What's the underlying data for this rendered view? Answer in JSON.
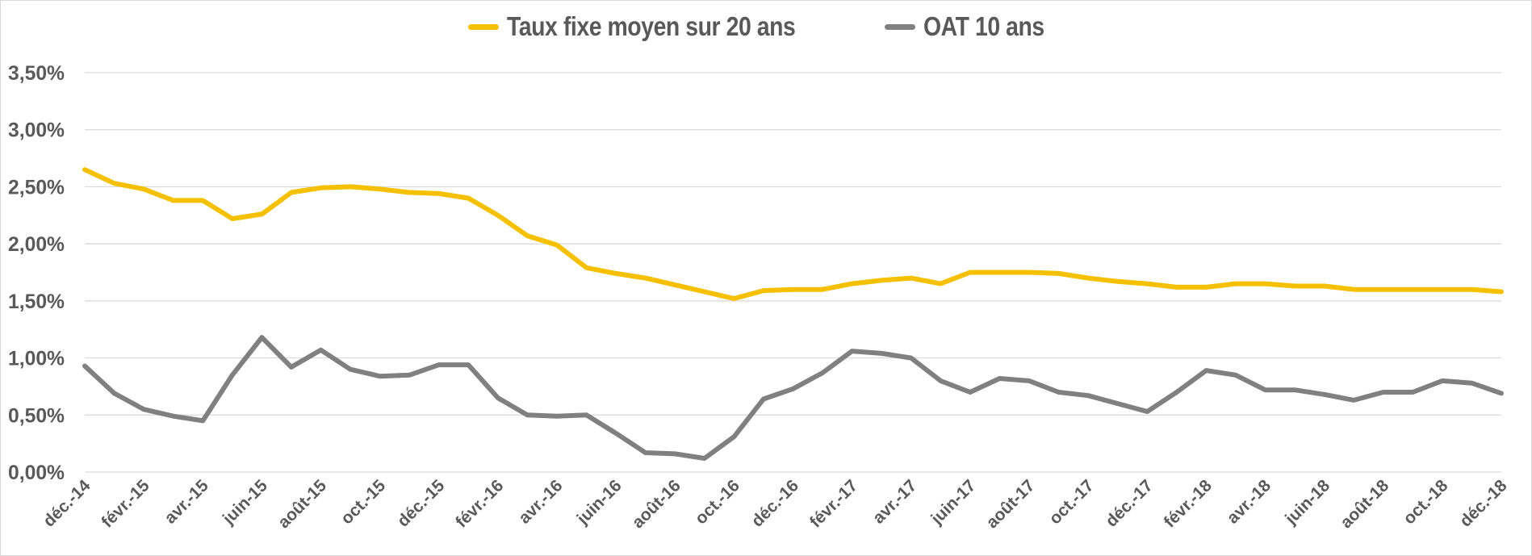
{
  "chart_data": {
    "type": "line",
    "title": "",
    "xlabel": "",
    "ylabel": "",
    "ylim": [
      0,
      3.5
    ],
    "y_ticks": [
      "0,00%",
      "0,50%",
      "1,00%",
      "1,50%",
      "2,00%",
      "2,50%",
      "3,00%",
      "3,50%"
    ],
    "y_tick_values": [
      0,
      0.5,
      1.0,
      1.5,
      2.0,
      2.5,
      3.0,
      3.5
    ],
    "grid": true,
    "legend_position": "top",
    "x_tick_labels": [
      "déc.-14",
      "févr.-15",
      "avr.-15",
      "juin-15",
      "août-15",
      "oct.-15",
      "déc.-15",
      "févr.-16",
      "avr.-16",
      "juin-16",
      "août-16",
      "oct.-16",
      "déc.-16",
      "févr.-17",
      "avr.-17",
      "juin-17",
      "août-17",
      "oct.-17",
      "déc.-17",
      "févr.-18",
      "avr.-18",
      "juin-18",
      "août-18",
      "oct.-18",
      "déc.-18"
    ],
    "x": [
      "déc.-14",
      "janv.-15",
      "févr.-15",
      "mars-15",
      "avr.-15",
      "mai-15",
      "juin-15",
      "juil.-15",
      "août-15",
      "sept.-15",
      "oct.-15",
      "nov.-15",
      "déc.-15",
      "janv.-16",
      "févr.-16",
      "mars-16",
      "avr.-16",
      "mai-16",
      "juin-16",
      "juil.-16",
      "août-16",
      "sept.-16",
      "oct.-16",
      "nov.-16",
      "déc.-16",
      "janv.-17",
      "févr.-17",
      "mars-17",
      "avr.-17",
      "mai-17",
      "juin-17",
      "juil.-17",
      "août-17",
      "sept.-17",
      "oct.-17",
      "nov.-17",
      "déc.-17",
      "janv.-18",
      "févr.-18",
      "mars-18",
      "avr.-18",
      "mai-18",
      "juin-18",
      "juil.-18",
      "août-18",
      "sept.-18",
      "oct.-18",
      "nov.-18",
      "déc.-18"
    ],
    "series": [
      {
        "name": "Taux fixe moyen sur 20 ans",
        "color": "#f5c000",
        "values": [
          2.65,
          2.53,
          2.48,
          2.38,
          2.38,
          2.22,
          2.26,
          2.45,
          2.49,
          2.5,
          2.48,
          2.45,
          2.44,
          2.4,
          2.25,
          2.07,
          1.99,
          1.79,
          1.74,
          1.7,
          1.64,
          1.58,
          1.52,
          1.59,
          1.6,
          1.6,
          1.65,
          1.68,
          1.7,
          1.65,
          1.75,
          1.75,
          1.75,
          1.74,
          1.7,
          1.67,
          1.65,
          1.62,
          1.62,
          1.65,
          1.65,
          1.63,
          1.63,
          1.6,
          1.6,
          1.6,
          1.6,
          1.6,
          1.58
        ]
      },
      {
        "name": "OAT 10 ans",
        "color": "#808080",
        "values": [
          0.93,
          0.69,
          0.55,
          0.49,
          0.45,
          0.85,
          1.18,
          0.92,
          1.07,
          0.9,
          0.84,
          0.85,
          0.94,
          0.94,
          0.65,
          0.5,
          0.49,
          0.5,
          0.34,
          0.17,
          0.16,
          0.12,
          0.31,
          0.64,
          0.73,
          0.87,
          1.06,
          1.04,
          1.0,
          0.8,
          0.7,
          0.82,
          0.8,
          0.7,
          0.67,
          0.6,
          0.53,
          0.7,
          0.89,
          0.85,
          0.72,
          0.72,
          0.68,
          0.63,
          0.7,
          0.7,
          0.8,
          0.78,
          0.69
        ]
      }
    ]
  },
  "legend": {
    "items": [
      {
        "label": "Taux fixe moyen sur 20 ans",
        "color": "#f5c000"
      },
      {
        "label": "OAT 10 ans",
        "color": "#808080"
      }
    ]
  },
  "colors": {
    "gridline": "#d9d9d9",
    "axis_text": "#595959",
    "border": "#d9d9d9"
  }
}
